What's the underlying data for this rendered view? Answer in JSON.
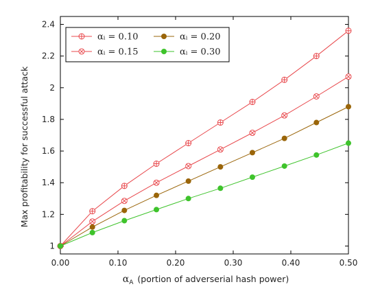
{
  "chart_data": {
    "type": "line",
    "title": "",
    "xlabel_symbol": "α",
    "xlabel_subscript": "A",
    "xlabel_rest": "(portion of adverserial hash power)",
    "ylabel": "Max profitability for successful attack",
    "xlim": [
      0.0,
      0.5
    ],
    "ylim": [
      0.95,
      2.45
    ],
    "xticks": [
      0.0,
      0.1,
      0.2,
      0.3,
      0.4,
      0.5
    ],
    "xtick_labels": [
      "0.00",
      "0.10",
      "0.20",
      "0.30",
      "0.40",
      "0.50"
    ],
    "yticks": [
      1.0,
      1.2,
      1.4,
      1.6,
      1.8,
      2.0,
      2.2,
      2.4
    ],
    "ytick_labels": [
      "1",
      "1.2",
      "1.4",
      "1.6",
      "1.8",
      "2",
      "2.2",
      "2.4"
    ],
    "grid": false,
    "legend_position": "top-left",
    "x": [
      0.0,
      0.0556,
      0.1111,
      0.1667,
      0.2222,
      0.2778,
      0.3333,
      0.3889,
      0.4444,
      0.5
    ],
    "series": [
      {
        "name": "αᵢ = 0.10",
        "color": "#e8474b",
        "marker": "circle-plus",
        "values": [
          1.0,
          1.22,
          1.38,
          1.52,
          1.65,
          1.78,
          1.91,
          2.05,
          2.2,
          2.36
        ]
      },
      {
        "name": "αᵢ = 0.15",
        "color": "#e8474b",
        "marker": "circle-x",
        "values": [
          1.0,
          1.155,
          1.285,
          1.4,
          1.505,
          1.61,
          1.715,
          1.825,
          1.945,
          2.07
        ]
      },
      {
        "name": "αᵢ = 0.20",
        "color": "#9a6509",
        "marker": "filled-circle",
        "values": [
          1.0,
          1.12,
          1.225,
          1.32,
          1.41,
          1.5,
          1.59,
          1.68,
          1.78,
          1.88
        ]
      },
      {
        "name": "αᵢ = 0.30",
        "color": "#3ec32b",
        "marker": "filled-circle",
        "values": [
          1.0,
          1.085,
          1.16,
          1.23,
          1.3,
          1.365,
          1.435,
          1.505,
          1.575,
          1.65
        ]
      }
    ]
  }
}
